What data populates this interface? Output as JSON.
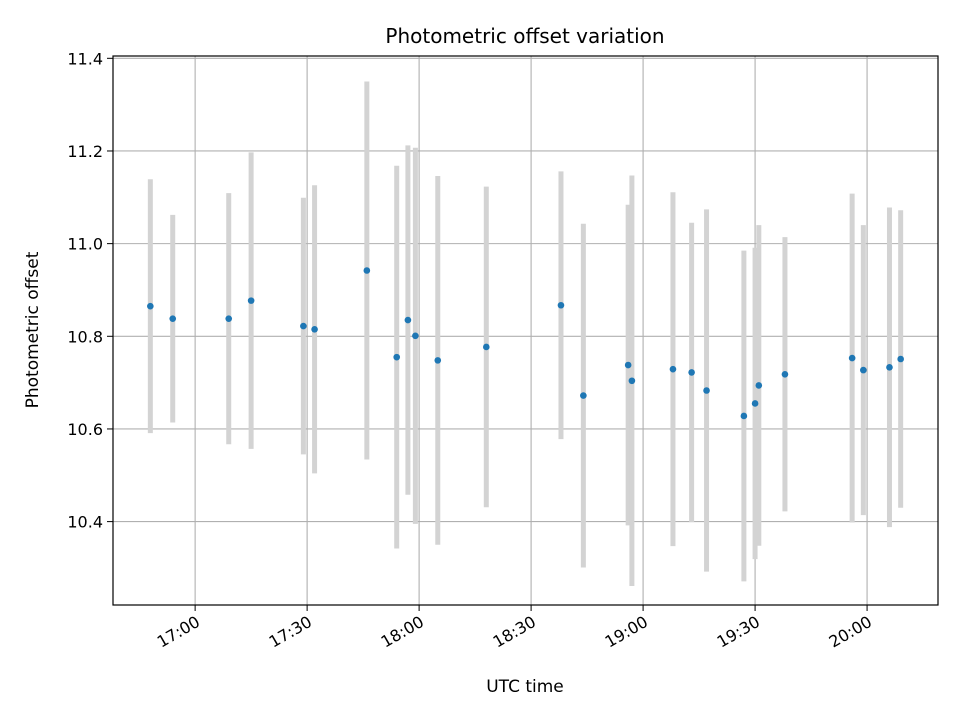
{
  "chart_data": {
    "type": "scatter",
    "title": "Photometric offset variation",
    "xlabel": "UTC time",
    "ylabel": "Photometric offset",
    "x_format": "HH:MM",
    "xlim": [
      "16:38",
      "20:19"
    ],
    "ylim": [
      10.22,
      11.405
    ],
    "x_ticks": [
      "17:00",
      "17:30",
      "18:00",
      "18:30",
      "19:00",
      "19:30",
      "20:00"
    ],
    "y_ticks": [
      10.4,
      10.6,
      10.8,
      11.0,
      11.2,
      11.4
    ],
    "y_tick_labels": [
      "10.4",
      "10.6",
      "10.8",
      "11.0",
      "11.2",
      "11.4"
    ],
    "grid": true,
    "colors": {
      "point": "#1f77b4",
      "errorbar": "#d3d3d3",
      "grid": "#b0b0b0"
    },
    "points": [
      {
        "x": "16:48",
        "y": 10.865,
        "err": 0.274
      },
      {
        "x": "16:54",
        "y": 10.838,
        "err": 0.224
      },
      {
        "x": "17:09",
        "y": 10.838,
        "err": 0.271
      },
      {
        "x": "17:15",
        "y": 10.877,
        "err": 0.32
      },
      {
        "x": "17:29",
        "y": 10.822,
        "err": 0.277
      },
      {
        "x": "17:32",
        "y": 10.815,
        "err": 0.311
      },
      {
        "x": "17:46",
        "y": 10.942,
        "err": 0.408
      },
      {
        "x": "17:54",
        "y": 10.755,
        "err": 0.413
      },
      {
        "x": "17:57",
        "y": 10.835,
        "err": 0.377
      },
      {
        "x": "17:59",
        "y": 10.801,
        "err": 0.406
      },
      {
        "x": "18:05",
        "y": 10.748,
        "err": 0.398
      },
      {
        "x": "18:18",
        "y": 10.777,
        "err": 0.346
      },
      {
        "x": "18:38",
        "y": 10.867,
        "err": 0.289
      },
      {
        "x": "18:44",
        "y": 10.672,
        "err": 0.371
      },
      {
        "x": "18:56",
        "y": 10.738,
        "err": 0.346
      },
      {
        "x": "18:57",
        "y": 10.704,
        "err": 0.443
      },
      {
        "x": "19:08",
        "y": 10.729,
        "err": 0.382
      },
      {
        "x": "19:13",
        "y": 10.722,
        "err": 0.323
      },
      {
        "x": "19:17",
        "y": 10.683,
        "err": 0.391
      },
      {
        "x": "19:27",
        "y": 10.628,
        "err": 0.357
      },
      {
        "x": "19:30",
        "y": 10.655,
        "err": 0.336
      },
      {
        "x": "19:31",
        "y": 10.694,
        "err": 0.346
      },
      {
        "x": "19:38",
        "y": 10.718,
        "err": 0.296
      },
      {
        "x": "19:56",
        "y": 10.753,
        "err": 0.355
      },
      {
        "x": "19:59",
        "y": 10.727,
        "err": 0.313
      },
      {
        "x": "20:06",
        "y": 10.733,
        "err": 0.345
      },
      {
        "x": "20:09",
        "y": 10.751,
        "err": 0.321
      }
    ]
  }
}
